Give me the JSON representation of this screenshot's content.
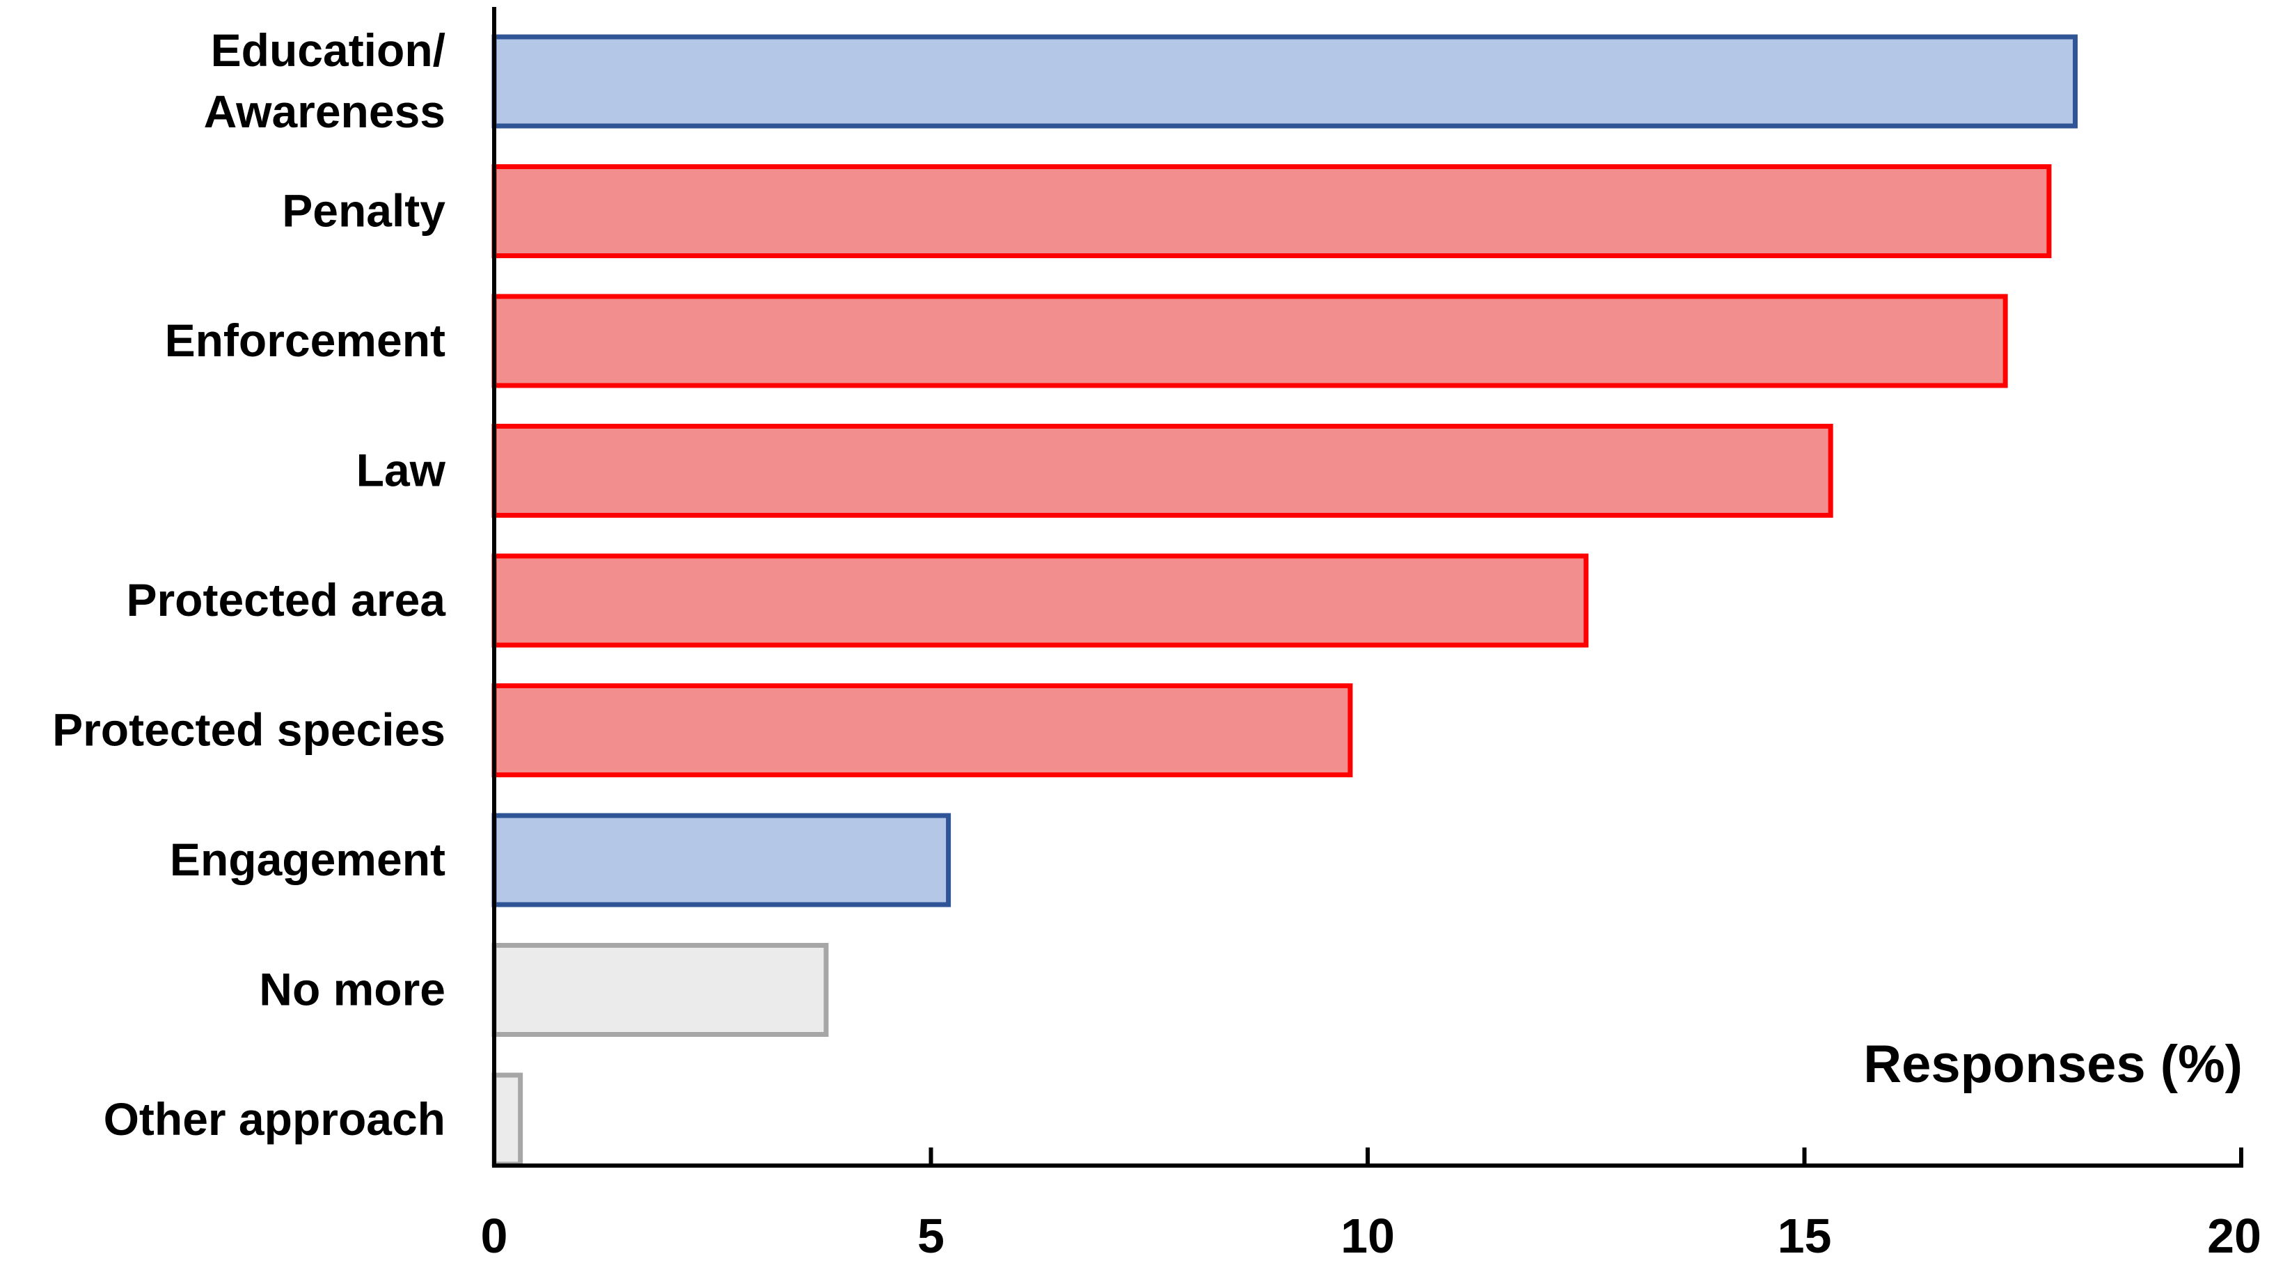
{
  "colors": {
    "blue_fill": "#b4c7e7",
    "blue_stroke": "#2f5597",
    "red_fill": "#f28e8e",
    "red_stroke": "#ff0000",
    "gray_fill": "#ebebeb",
    "gray_stroke": "#a6a6a6",
    "axis": "#000000"
  },
  "chart_data": {
    "type": "bar",
    "orientation": "horizontal",
    "title": "",
    "xlabel": "Responses (%)",
    "ylabel": "",
    "xlim": [
      0,
      20
    ],
    "xticks": [
      0,
      5,
      10,
      15,
      20
    ],
    "grid": false,
    "legend": "none",
    "categories": [
      {
        "label": "Education/\nAwareness",
        "value": 18.1,
        "color_group": "blue"
      },
      {
        "label": "Penalty",
        "value": 17.8,
        "color_group": "red"
      },
      {
        "label": "Enforcement",
        "value": 17.3,
        "color_group": "red"
      },
      {
        "label": "Law",
        "value": 15.3,
        "color_group": "red"
      },
      {
        "label": "Protected area",
        "value": 12.5,
        "color_group": "red"
      },
      {
        "label": "Protected species",
        "value": 9.8,
        "color_group": "red"
      },
      {
        "label": "Engagement",
        "value": 5.2,
        "color_group": "blue"
      },
      {
        "label": "No more",
        "value": 3.8,
        "color_group": "gray"
      },
      {
        "label": "Other approach",
        "value": 0.3,
        "color_group": "gray"
      }
    ]
  }
}
